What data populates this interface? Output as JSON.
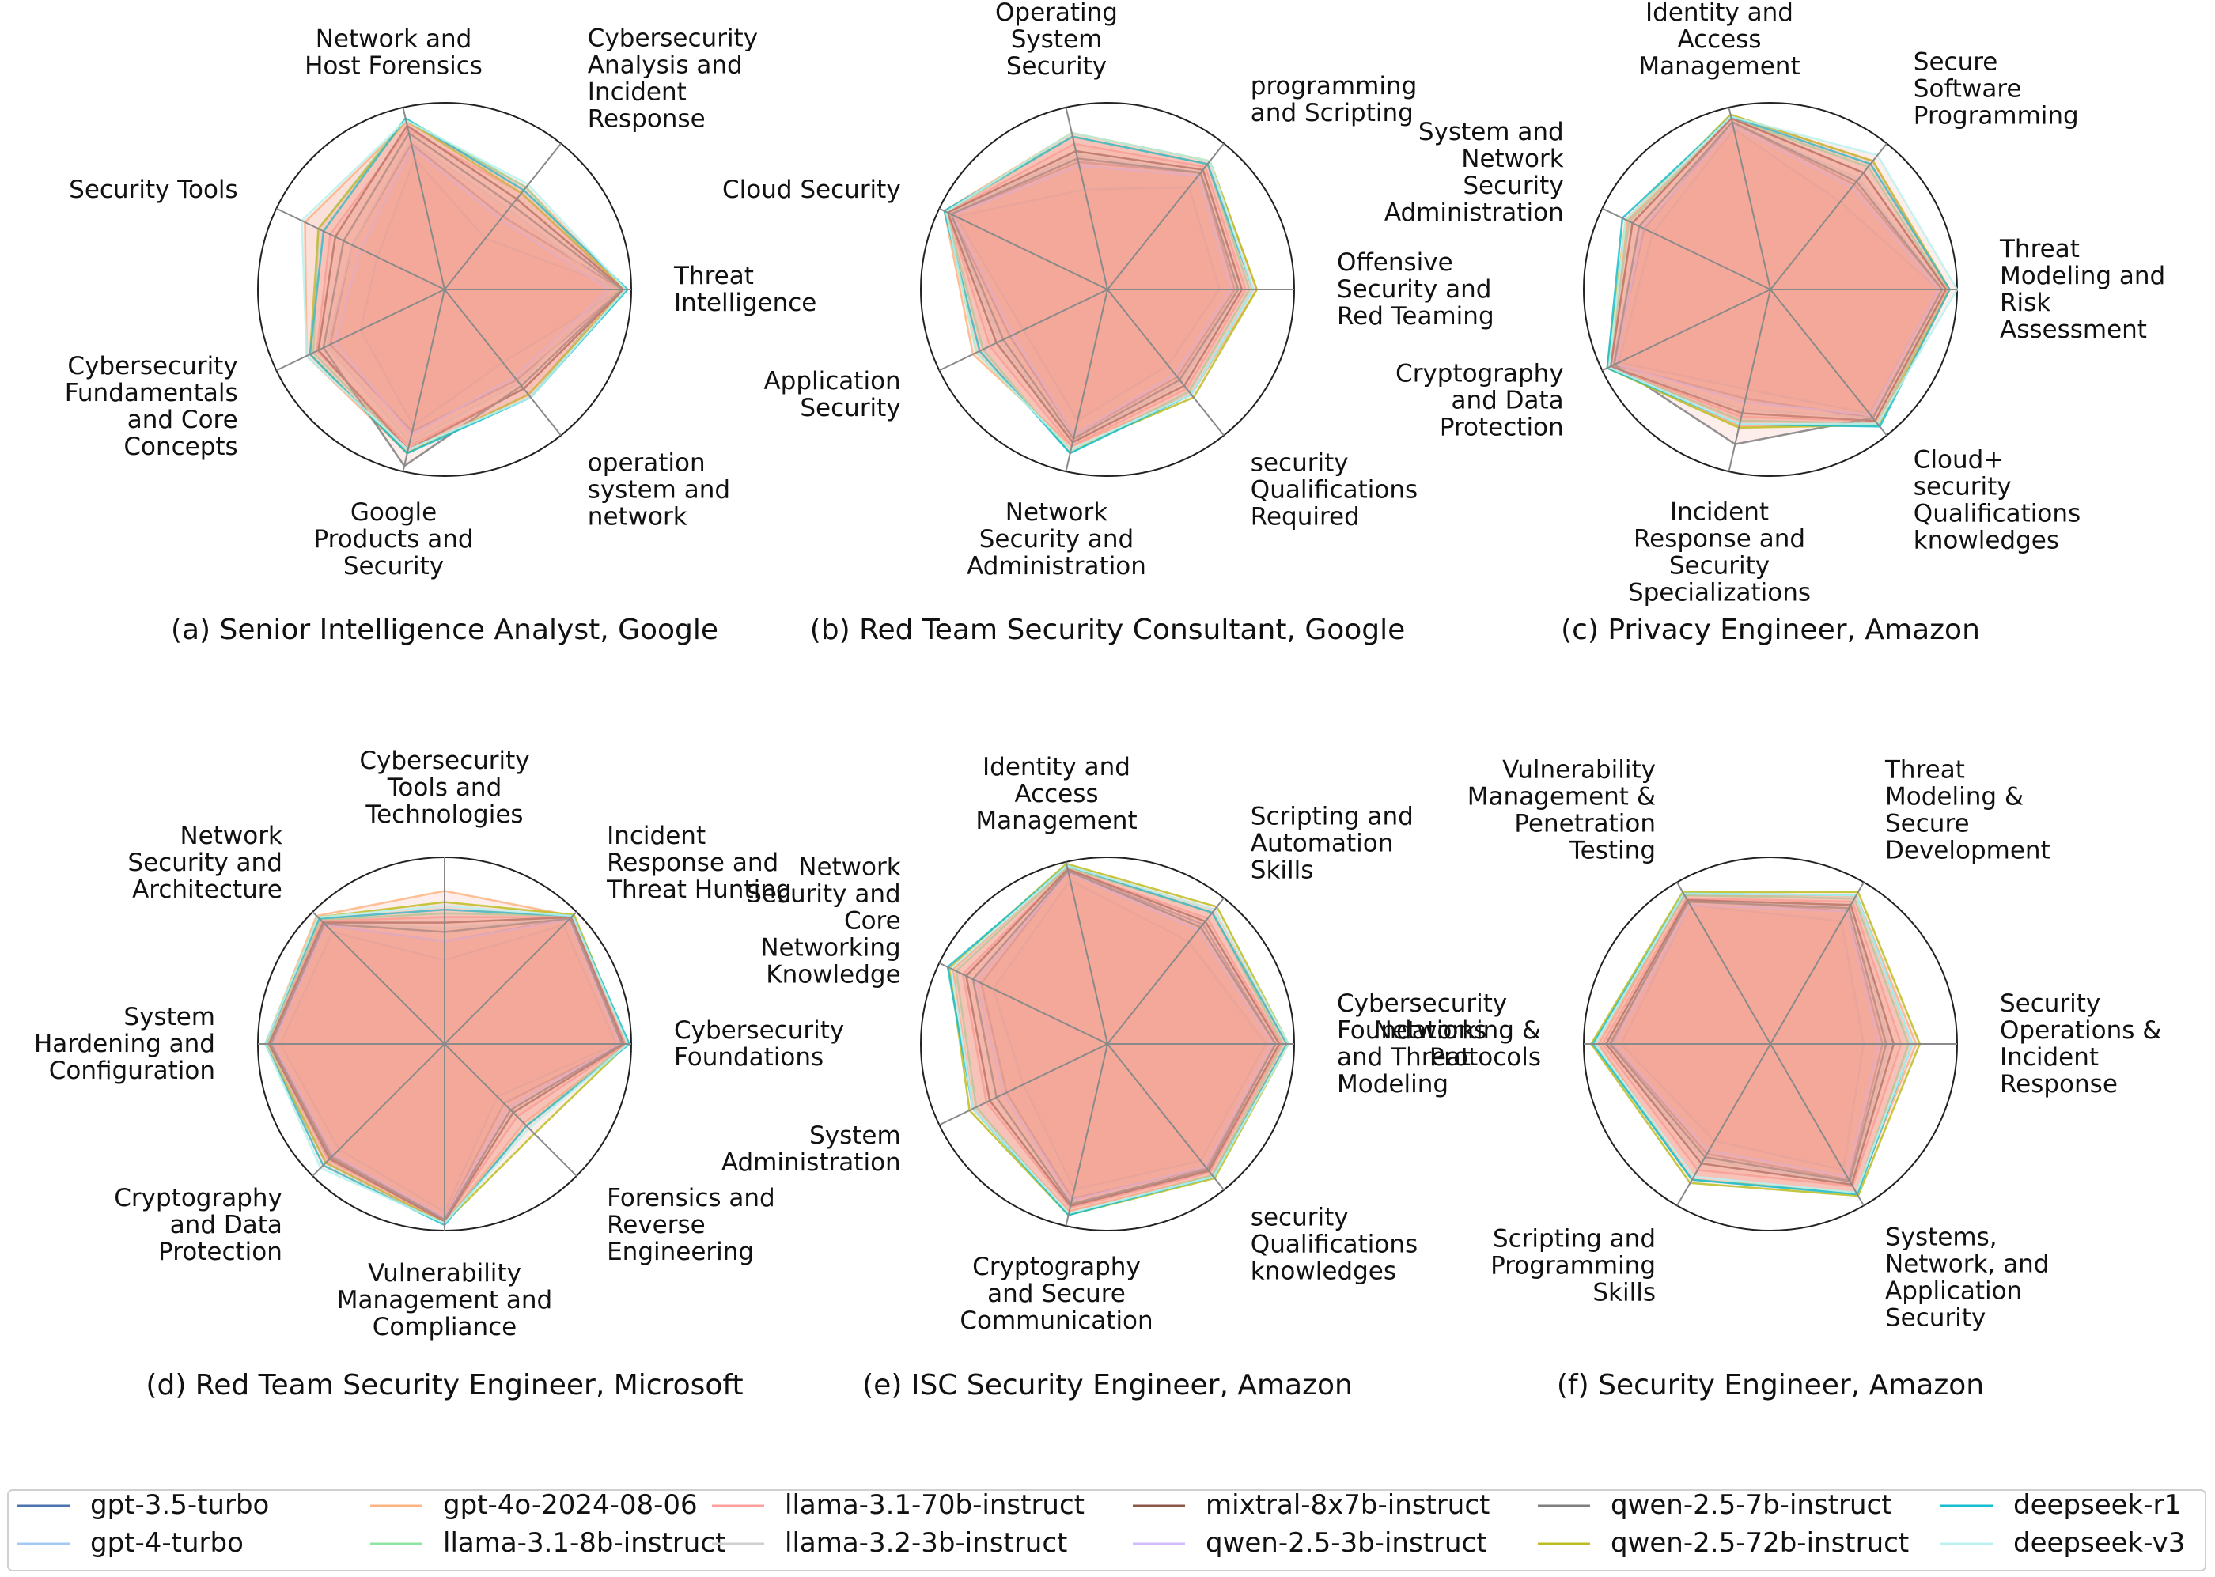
{
  "chart_data": [
    {
      "type": "radar",
      "title": "(a) Senior Intelligence Analyst, Google",
      "axes": [
        "Threat\nIntelligence",
        "Cybersecurity\nAnalysis and\nIncident\nResponse",
        "Network and\nHost Forensics",
        "Security Tools",
        "Cybersecurity\nFundamentals\nand Core\nConcepts",
        "Google\nProducts and\nSecurity",
        "operation\nsystem and\nnetwork"
      ],
      "rlim": [
        0,
        1
      ],
      "series": [
        {
          "name": "gpt-3.5-turbo",
          "values": [
            0.95,
            0.5,
            0.8,
            0.55,
            0.68,
            0.78,
            0.62
          ]
        },
        {
          "name": "gpt-4-turbo",
          "values": [
            0.95,
            0.35,
            0.72,
            0.4,
            0.5,
            0.75,
            0.5
          ]
        },
        {
          "name": "gpt-4o-2024-08-06",
          "values": [
            0.96,
            0.7,
            0.92,
            0.83,
            0.82,
            0.9,
            0.72
          ]
        },
        {
          "name": "llama-3.1-8b-instruct",
          "values": [
            0.93,
            0.7,
            0.94,
            0.75,
            0.78,
            0.88,
            0.74
          ]
        },
        {
          "name": "llama-3.1-70b-instruct",
          "values": [
            0.96,
            0.66,
            0.88,
            0.68,
            0.76,
            0.86,
            0.68
          ]
        },
        {
          "name": "llama-3.2-3b-instruct",
          "values": [
            0.9,
            0.55,
            0.82,
            0.55,
            0.7,
            0.84,
            0.64
          ]
        },
        {
          "name": "mixtral-8x7b-instruct",
          "values": [
            0.96,
            0.62,
            0.9,
            0.65,
            0.75,
            0.88,
            0.68
          ]
        },
        {
          "name": "qwen-2.5-3b-instruct",
          "values": [
            0.88,
            0.48,
            0.78,
            0.5,
            0.65,
            0.8,
            0.6
          ]
        },
        {
          "name": "qwen-2.5-7b-instruct",
          "values": [
            0.95,
            0.58,
            0.86,
            0.6,
            0.72,
            0.97,
            0.66
          ]
        },
        {
          "name": "qwen-2.5-72b-instruct",
          "values": [
            0.97,
            0.66,
            0.93,
            0.75,
            0.8,
            0.9,
            0.72
          ]
        },
        {
          "name": "deepseek-r1",
          "values": [
            0.98,
            0.68,
            0.94,
            0.72,
            0.8,
            0.9,
            0.74
          ]
        },
        {
          "name": "deepseek-v3",
          "values": [
            0.97,
            0.72,
            0.93,
            0.85,
            0.82,
            0.88,
            0.74
          ]
        }
      ]
    },
    {
      "type": "radar",
      "title": "(b) Red Team Security Consultant, Google",
      "axes": [
        "Offensive\nSecurity and\nRed Teaming",
        "programming\nand Scripting",
        "Operating\nSystem\nSecurity",
        "Cloud Security",
        "Application\nSecurity",
        "Network\nSecurity and\nAdministration",
        "security\nQualifications\nRequired"
      ],
      "rlim": [
        0,
        1
      ],
      "series": [
        {
          "name": "gpt-3.5-turbo",
          "values": [
            0.68,
            0.8,
            0.7,
            0.93,
            0.58,
            0.8,
            0.6
          ]
        },
        {
          "name": "gpt-4-turbo",
          "values": [
            0.6,
            0.7,
            0.55,
            0.9,
            0.5,
            0.72,
            0.52
          ]
        },
        {
          "name": "gpt-4o-2024-08-06",
          "values": [
            0.8,
            0.88,
            0.86,
            0.97,
            0.8,
            0.86,
            0.72
          ]
        },
        {
          "name": "llama-3.1-8b-instruct",
          "values": [
            0.76,
            0.86,
            0.84,
            0.96,
            0.74,
            0.9,
            0.7
          ]
        },
        {
          "name": "llama-3.1-70b-instruct",
          "values": [
            0.74,
            0.84,
            0.8,
            0.95,
            0.7,
            0.86,
            0.68
          ]
        },
        {
          "name": "llama-3.2-3b-instruct",
          "values": [
            0.7,
            0.8,
            0.74,
            0.94,
            0.64,
            0.84,
            0.64
          ]
        },
        {
          "name": "mixtral-8x7b-instruct",
          "values": [
            0.72,
            0.82,
            0.76,
            0.95,
            0.66,
            0.84,
            0.66
          ]
        },
        {
          "name": "qwen-2.5-3b-instruct",
          "values": [
            0.66,
            0.78,
            0.68,
            0.92,
            0.56,
            0.8,
            0.58
          ]
        },
        {
          "name": "qwen-2.5-7b-instruct",
          "values": [
            0.7,
            0.8,
            0.72,
            0.93,
            0.62,
            0.82,
            0.62
          ]
        },
        {
          "name": "qwen-2.5-72b-instruct",
          "values": [
            0.8,
            0.88,
            0.86,
            0.96,
            0.78,
            0.88,
            0.74
          ]
        },
        {
          "name": "deepseek-r1",
          "values": [
            0.78,
            0.86,
            0.84,
            0.97,
            0.76,
            0.9,
            0.72
          ]
        },
        {
          "name": "deepseek-v3",
          "values": [
            0.78,
            0.88,
            0.86,
            0.96,
            0.78,
            0.88,
            0.72
          ]
        }
      ]
    },
    {
      "type": "radar",
      "title": "(c) Privacy Engineer, Amazon",
      "axes": [
        "Threat\nModeling and\nRisk\nAssessment",
        "Secure\nSoftware\nProgramming",
        "Identity and\nAccess\nManagement",
        "System and\nNetwork\nSecurity\nAdministration",
        "Cryptography\nand Data\nProtection",
        "Incident\nResponse and\nSecurity\nSpecializations",
        "Cloud+\nsecurity\nQualifications\nknowledges"
      ],
      "rlim": [
        0,
        1
      ],
      "series": [
        {
          "name": "gpt-3.5-turbo",
          "values": [
            0.92,
            0.72,
            0.92,
            0.75,
            0.93,
            0.6,
            0.88
          ]
        },
        {
          "name": "gpt-4-turbo",
          "values": [
            0.9,
            0.6,
            0.88,
            0.7,
            0.9,
            0.55,
            0.85
          ]
        },
        {
          "name": "gpt-4o-2024-08-06",
          "values": [
            0.95,
            0.88,
            0.96,
            0.85,
            0.97,
            0.75,
            0.92
          ]
        },
        {
          "name": "llama-3.1-8b-instruct",
          "values": [
            0.94,
            0.84,
            0.94,
            0.84,
            0.96,
            0.72,
            0.92
          ]
        },
        {
          "name": "llama-3.1-70b-instruct",
          "values": [
            0.94,
            0.8,
            0.94,
            0.82,
            0.95,
            0.7,
            0.9
          ]
        },
        {
          "name": "llama-3.2-3b-instruct",
          "values": [
            0.92,
            0.76,
            0.92,
            0.78,
            0.94,
            0.66,
            0.88
          ]
        },
        {
          "name": "mixtral-8x7b-instruct",
          "values": [
            0.94,
            0.8,
            0.94,
            0.82,
            0.95,
            0.68,
            0.9
          ]
        },
        {
          "name": "qwen-2.5-3b-instruct",
          "values": [
            0.9,
            0.7,
            0.9,
            0.76,
            0.92,
            0.62,
            0.86
          ]
        },
        {
          "name": "qwen-2.5-7b-instruct",
          "values": [
            0.92,
            0.74,
            0.92,
            0.78,
            0.93,
            0.85,
            0.88
          ]
        },
        {
          "name": "qwen-2.5-72b-instruct",
          "values": [
            0.96,
            0.88,
            0.96,
            0.86,
            0.97,
            0.76,
            0.93
          ]
        },
        {
          "name": "deepseek-r1",
          "values": [
            0.96,
            0.86,
            0.95,
            0.88,
            0.97,
            0.74,
            0.94
          ]
        },
        {
          "name": "deepseek-v3",
          "values": [
            1.0,
            0.92,
            0.95,
            0.86,
            0.96,
            0.74,
            0.92
          ]
        }
      ]
    },
    {
      "type": "radar",
      "title": "(d) Red Team Security Engineer, Microsoft",
      "axes": [
        "Cybersecurity\nFoundations",
        "Incident\nResponse and\nThreat Hunting",
        "Cybersecurity\nTools and\nTechnologies",
        "Network\nSecurity and\nArchitecture",
        "System\nHardening and\nConfiguration",
        "Cryptography\nand Data\nProtection",
        "Vulnerability\nManagement and\nCompliance",
        "Forensics and\nReverse\nEngineering"
      ],
      "rlim": [
        0,
        1
      ],
      "series": [
        {
          "name": "gpt-3.5-turbo",
          "values": [
            0.95,
            0.95,
            0.55,
            0.9,
            0.92,
            0.85,
            0.93,
            0.45
          ]
        },
        {
          "name": "gpt-4-turbo",
          "values": [
            0.92,
            0.9,
            0.45,
            0.85,
            0.88,
            0.8,
            0.9,
            0.4
          ]
        },
        {
          "name": "gpt-4o-2024-08-06",
          "values": [
            0.98,
            0.97,
            0.82,
            0.97,
            0.96,
            0.9,
            0.96,
            0.6
          ]
        },
        {
          "name": "llama-3.1-8b-instruct",
          "values": [
            0.97,
            0.97,
            0.7,
            0.94,
            0.95,
            0.9,
            0.96,
            0.62
          ]
        },
        {
          "name": "llama-3.1-70b-instruct",
          "values": [
            0.97,
            0.96,
            0.68,
            0.93,
            0.94,
            0.88,
            0.95,
            0.55
          ]
        },
        {
          "name": "llama-3.2-3b-instruct",
          "values": [
            0.95,
            0.95,
            0.62,
            0.92,
            0.93,
            0.87,
            0.94,
            0.5
          ]
        },
        {
          "name": "mixtral-8x7b-instruct",
          "values": [
            0.96,
            0.96,
            0.65,
            0.92,
            0.94,
            0.87,
            0.95,
            0.52
          ]
        },
        {
          "name": "qwen-2.5-3b-instruct",
          "values": [
            0.94,
            0.94,
            0.55,
            0.9,
            0.92,
            0.84,
            0.93,
            0.48
          ]
        },
        {
          "name": "qwen-2.5-7b-instruct",
          "values": [
            0.95,
            0.95,
            0.6,
            0.91,
            0.93,
            0.86,
            0.94,
            0.5
          ]
        },
        {
          "name": "qwen-2.5-72b-instruct",
          "values": [
            0.98,
            0.98,
            0.76,
            0.96,
            0.96,
            0.9,
            0.96,
            0.68
          ]
        },
        {
          "name": "deepseek-r1",
          "values": [
            0.99,
            0.97,
            0.72,
            0.95,
            0.96,
            0.92,
            0.97,
            0.62
          ]
        },
        {
          "name": "deepseek-v3",
          "values": [
            0.98,
            0.97,
            0.74,
            0.96,
            0.96,
            0.94,
            0.96,
            0.64
          ]
        }
      ]
    },
    {
      "type": "radar",
      "title": "(e) ISC Security Engineer, Amazon",
      "axes": [
        "Cybersecurity\nFoundations\nand Threat\nModeling",
        "Scripting and\nAutomation\nSkills",
        "Identity and\nAccess\nManagement",
        "Network\nSecurity and\nCore\nNetworking\nKnowledge",
        "System\nAdministration",
        "Cryptography\nand Secure\nCommunication",
        "security\nQualifications\nknowledges"
      ],
      "rlim": [
        0,
        1
      ],
      "series": [
        {
          "name": "gpt-3.5-turbo",
          "values": [
            0.9,
            0.82,
            0.95,
            0.75,
            0.6,
            0.85,
            0.85
          ]
        },
        {
          "name": "gpt-4-turbo",
          "values": [
            0.85,
            0.7,
            0.9,
            0.68,
            0.5,
            0.8,
            0.8
          ]
        },
        {
          "name": "gpt-4o-2024-08-06",
          "values": [
            0.96,
            0.92,
            0.98,
            0.92,
            0.8,
            0.92,
            0.9
          ]
        },
        {
          "name": "llama-3.1-8b-instruct",
          "values": [
            0.94,
            0.9,
            0.97,
            0.9,
            0.78,
            0.94,
            0.9
          ]
        },
        {
          "name": "llama-3.1-70b-instruct",
          "values": [
            0.93,
            0.86,
            0.96,
            0.86,
            0.72,
            0.9,
            0.88
          ]
        },
        {
          "name": "llama-3.2-3b-instruct",
          "values": [
            0.9,
            0.8,
            0.95,
            0.8,
            0.66,
            0.88,
            0.86
          ]
        },
        {
          "name": "mixtral-8x7b-instruct",
          "values": [
            0.92,
            0.84,
            0.96,
            0.84,
            0.7,
            0.89,
            0.87
          ]
        },
        {
          "name": "qwen-2.5-3b-instruct",
          "values": [
            0.88,
            0.78,
            0.94,
            0.78,
            0.62,
            0.86,
            0.84
          ]
        },
        {
          "name": "qwen-2.5-7b-instruct",
          "values": [
            0.9,
            0.8,
            0.95,
            0.8,
            0.66,
            0.88,
            0.86
          ]
        },
        {
          "name": "qwen-2.5-72b-instruct",
          "values": [
            0.97,
            0.94,
            0.99,
            0.94,
            0.82,
            0.94,
            0.92
          ]
        },
        {
          "name": "deepseek-r1",
          "values": [
            0.96,
            0.9,
            0.98,
            0.95,
            0.8,
            0.94,
            0.91
          ]
        },
        {
          "name": "deepseek-v3",
          "values": [
            0.97,
            0.92,
            0.98,
            0.93,
            0.8,
            0.93,
            0.91
          ]
        }
      ]
    },
    {
      "type": "radar",
      "title": "(f) Security Engineer, Amazon",
      "axes": [
        "Security\nOperations &\nIncident\nResponse",
        "Threat\nModeling &\nSecure\nDevelopment",
        "Vulnerability\nManagement &\nPenetration\nTesting",
        "Networking &\nProtocols",
        "Scripting and\nProgramming\nSkills",
        "Systems,\nNetwork, and\nApplication\nSecurity"
      ],
      "rlim": [
        0,
        1
      ],
      "series": [
        {
          "name": "gpt-3.5-turbo",
          "values": [
            0.6,
            0.82,
            0.9,
            0.85,
            0.68,
            0.84
          ]
        },
        {
          "name": "gpt-4-turbo",
          "values": [
            0.5,
            0.76,
            0.86,
            0.8,
            0.6,
            0.78
          ]
        },
        {
          "name": "gpt-4o-2024-08-06",
          "values": [
            0.78,
            0.92,
            0.92,
            0.92,
            0.84,
            0.92
          ]
        },
        {
          "name": "llama-3.1-8b-instruct",
          "values": [
            0.74,
            0.9,
            0.92,
            0.94,
            0.84,
            0.92
          ]
        },
        {
          "name": "llama-3.1-70b-instruct",
          "values": [
            0.7,
            0.88,
            0.9,
            0.9,
            0.78,
            0.88
          ]
        },
        {
          "name": "llama-3.2-3b-instruct",
          "values": [
            0.64,
            0.86,
            0.88,
            0.88,
            0.72,
            0.86
          ]
        },
        {
          "name": "mixtral-8x7b-instruct",
          "values": [
            0.66,
            0.86,
            0.89,
            0.88,
            0.74,
            0.87
          ]
        },
        {
          "name": "qwen-2.5-3b-instruct",
          "values": [
            0.58,
            0.82,
            0.86,
            0.84,
            0.66,
            0.82
          ]
        },
        {
          "name": "qwen-2.5-7b-instruct",
          "values": [
            0.62,
            0.84,
            0.88,
            0.86,
            0.7,
            0.85
          ]
        },
        {
          "name": "qwen-2.5-72b-instruct",
          "values": [
            0.8,
            0.94,
            0.94,
            0.96,
            0.86,
            0.94
          ]
        },
        {
          "name": "deepseek-r1",
          "values": [
            0.76,
            0.92,
            0.93,
            0.95,
            0.84,
            0.93
          ]
        },
        {
          "name": "deepseek-v3",
          "values": [
            0.76,
            0.92,
            0.93,
            0.94,
            0.82,
            0.92
          ]
        }
      ]
    }
  ],
  "legend": {
    "placement": "bottom",
    "entries": [
      {
        "name": "gpt-3.5-turbo",
        "color": "#4c72b0"
      },
      {
        "name": "gpt-4-turbo",
        "color": "#a1c9f4"
      },
      {
        "name": "gpt-4o-2024-08-06",
        "color": "#ffb482"
      },
      {
        "name": "llama-3.1-8b-instruct",
        "color": "#8de5a1"
      },
      {
        "name": "llama-3.1-70b-instruct",
        "color": "#ff9f9b"
      },
      {
        "name": "llama-3.2-3b-instruct",
        "color": "#cfcfcf"
      },
      {
        "name": "mixtral-8x7b-instruct",
        "color": "#8c564b"
      },
      {
        "name": "qwen-2.5-3b-instruct",
        "color": "#d0bbff"
      },
      {
        "name": "qwen-2.5-7b-instruct",
        "color": "#7f7f7f"
      },
      {
        "name": "qwen-2.5-72b-instruct",
        "color": "#bcbd22"
      },
      {
        "name": "deepseek-r1",
        "color": "#17becf"
      },
      {
        "name": "deepseek-v3",
        "color": "#b9f2f0"
      }
    ]
  },
  "colors": {
    "fill": "#f2a08f",
    "spoke": "#8a8a8a",
    "frame": "#222222"
  }
}
